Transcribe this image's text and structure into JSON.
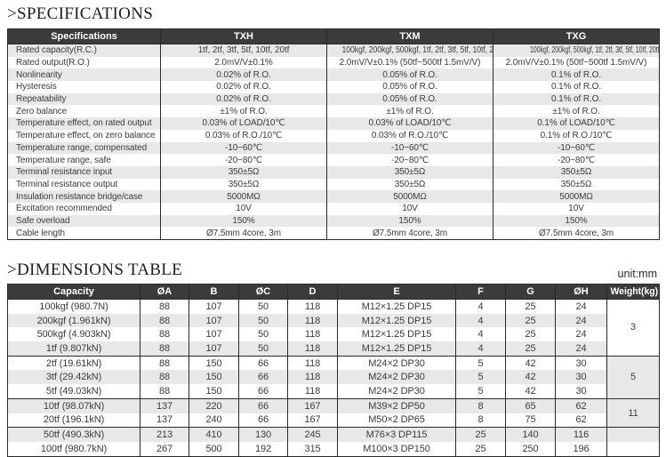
{
  "titles": {
    "specifications": ">SPECIFICATIONS",
    "dimensions": ">DIMENSIONS TABLE",
    "unit": "unit:mm"
  },
  "colors": {
    "header_bg": "#3b3b3b",
    "header_text": "#ffffff",
    "stripe": "#e8e8e8",
    "border": "#2a2a2a",
    "text": "#3c3c3c"
  },
  "spec_table": {
    "columns": [
      "Specifications",
      "TXH",
      "TXM",
      "TXG"
    ],
    "rows": [
      [
        "Rated capacity(R.C.)",
        "1tf, 2tf, 3tf, 5tf, 10tf, 20tf",
        "100kgf, 200kgf, 500kgf, 1tf, 2tf, 3tf, 5tf, 10tf, 20tf",
        "100kgf, 200kgf, 500kgf, 1tf, 2tf, 3tf, 5tf, 10tf, 20tf, 50tf, 100tf"
      ],
      [
        "Rated output(R.O.)",
        "2.0mV/V±0.1%",
        "2.0mV/V±0.1% (50tf~500tf 1.5mV/V)",
        "2.0mV/V±0.1% (50tf~500tf 1.5mV/V)"
      ],
      [
        "Nonlinearity",
        "0.02% of R.O.",
        "0.05% of R.O.",
        "0.1% of R.O."
      ],
      [
        "Hysteresis",
        "0.02% of R.O.",
        "0.05% of R.O.",
        "0.1% of R.O."
      ],
      [
        "Repeatability",
        "0.02% of R.O.",
        "0.05% of R.O.",
        "0.1% of R.O."
      ],
      [
        "Zero balance",
        "±1% of R.O.",
        "±1% of R.O.",
        "±1% of R.O."
      ],
      [
        "Temperature effect, on rated output",
        "0.03% of LOAD/10℃",
        "0.03% of LOAD/10℃",
        "0.1% of LOAD/10℃"
      ],
      [
        "Temperature effect, on zero balance",
        "0.03% of R.O./10℃",
        "0.03% of R.O./10℃",
        "0.1% of R.O./10℃"
      ],
      [
        "Temperature range, compensated",
        "-10~60℃",
        "-10~60℃",
        "-10~60℃"
      ],
      [
        "Temperature range, safe",
        "-20~80℃",
        "-20~80℃",
        "-20~80℃"
      ],
      [
        "Terminal resistance input",
        "350±5Ω",
        "350±5Ω",
        "350±5Ω"
      ],
      [
        "Terminal resistance output",
        "350±5Ω",
        "350±5Ω",
        "350±5Ω"
      ],
      [
        "Insulation resistance bridge/case",
        "5000MΩ",
        "5000MΩ",
        "5000MΩ"
      ],
      [
        "Excitation recommended",
        "10V",
        "10V",
        "10V"
      ],
      [
        "Safe overload",
        "150%",
        "150%",
        "150%"
      ],
      [
        "Cable length",
        "Ø7.5mm 4core, 3m",
        "Ø7.5mm 4core, 3m",
        "Ø7.5mm 4core, 3m"
      ]
    ]
  },
  "dimensions_table": {
    "columns": [
      "Capacity",
      "ØA",
      "B",
      "ØC",
      "D",
      "E",
      "F",
      "G",
      "ØH",
      "Weight(kg)"
    ],
    "rows": [
      [
        "100kgf (980.7N)",
        "88",
        "107",
        "50",
        "118",
        "M12×1.25 DP15",
        "4",
        "25",
        "24"
      ],
      [
        "200kgf (1.961kN)",
        "88",
        "107",
        "50",
        "118",
        "M12×1.25 DP15",
        "4",
        "25",
        "24"
      ],
      [
        "500kgf (4.903kN)",
        "88",
        "107",
        "50",
        "118",
        "M12×1.25 DP15",
        "4",
        "25",
        "24"
      ],
      [
        "1tf (9.807kN)",
        "88",
        "107",
        "50",
        "118",
        "M12×1.25 DP15",
        "4",
        "25",
        "24"
      ],
      [
        "2tf (19.61kN)",
        "88",
        "150",
        "66",
        "118",
        "M24×2 DP30",
        "5",
        "42",
        "30"
      ],
      [
        "3tf (29.42kN)",
        "88",
        "150",
        "66",
        "118",
        "M24×2 DP30",
        "5",
        "42",
        "30"
      ],
      [
        "5tf (49.03kN)",
        "88",
        "150",
        "66",
        "118",
        "M24×2 DP30",
        "5",
        "42",
        "30"
      ],
      [
        "10tf (98.07kN)",
        "137",
        "220",
        "66",
        "167",
        "M39×2 DP50",
        "8",
        "65",
        "62"
      ],
      [
        "20tf (196.1kN)",
        "137",
        "240",
        "66",
        "167",
        "M50×2 DP65",
        "8",
        "75",
        "62"
      ],
      [
        "50tf (490.3kN)",
        "213",
        "410",
        "130",
        "245",
        "M76×3 DP115",
        "25",
        "140",
        "116"
      ],
      [
        "100tf (980.7kN)",
        "267",
        "500",
        "192",
        "315",
        "M100×3 DP150",
        "25",
        "250",
        "196"
      ]
    ],
    "weight_groups": [
      {
        "span": 4,
        "label": "3",
        "shaded": false
      },
      {
        "span": 3,
        "label": "5",
        "shaded": true
      },
      {
        "span": 2,
        "label": "11",
        "shaded": false
      },
      {
        "span": 1,
        "label": "",
        "shaded": true
      },
      {
        "span": 1,
        "label": "",
        "shaded": false
      }
    ],
    "group_end_rows": [
      3,
      6,
      8
    ]
  }
}
